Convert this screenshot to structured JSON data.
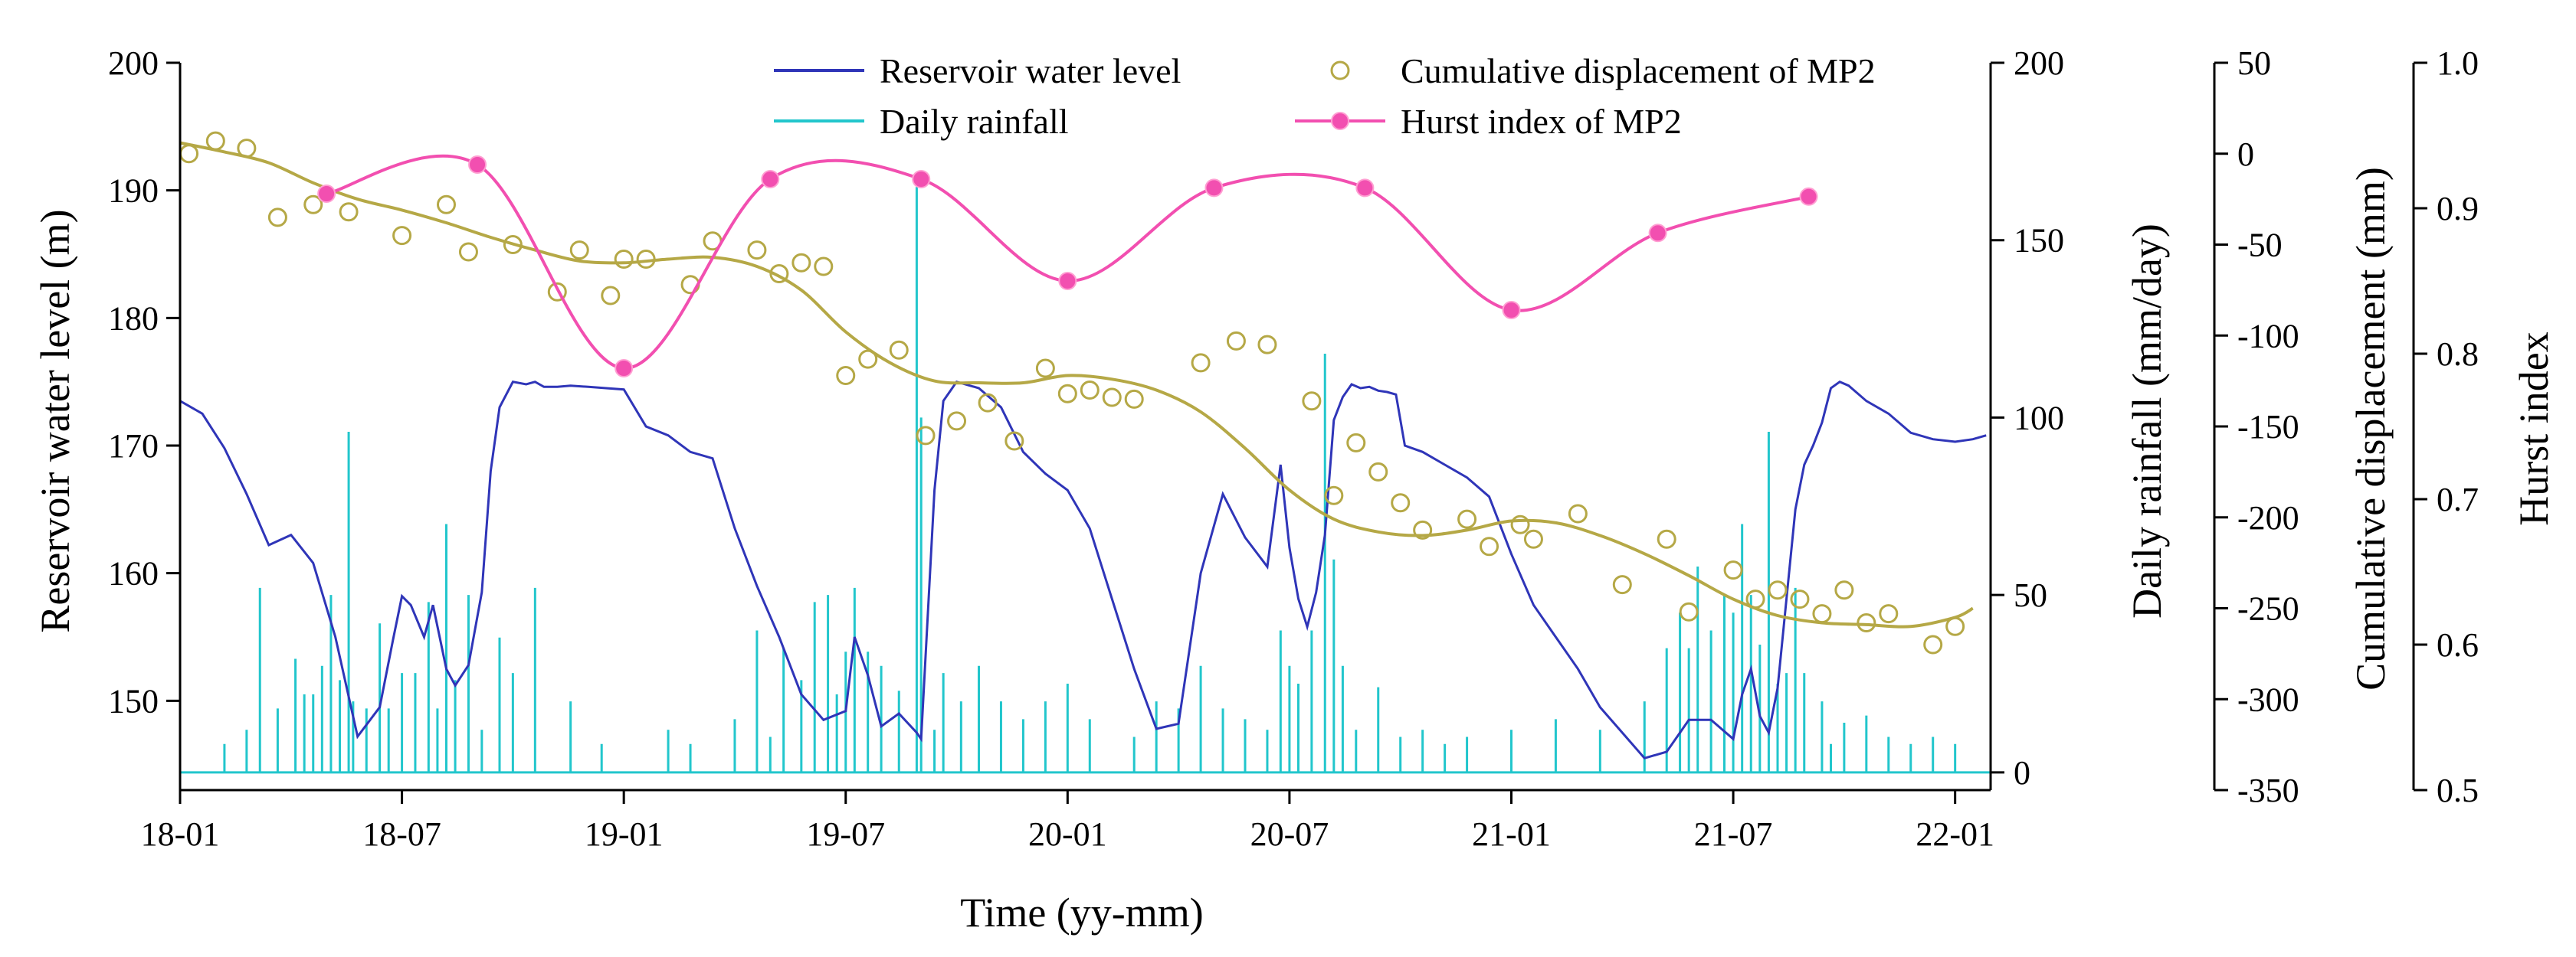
{
  "chart_data": {
    "type": "line",
    "xlabel": "Time (yy-mm)",
    "x_tick_labels": [
      "18-01",
      "18-07",
      "19-01",
      "19-07",
      "20-01",
      "20-07",
      "21-01",
      "21-07",
      "22-01"
    ],
    "x_tick_values": [
      2018.0,
      2018.5,
      2019.0,
      2019.5,
      2020.0,
      2020.5,
      2021.0,
      2021.5,
      2022.0
    ],
    "xlim": [
      2018.0,
      2022.08
    ],
    "axes": {
      "water": {
        "label": "Reservoir water level (m)",
        "lim": [
          143,
          200
        ],
        "ticks": [
          150,
          160,
          170,
          180,
          190,
          200
        ]
      },
      "rain": {
        "label": "Daily rainfall (mm/day)",
        "lim": [
          -5,
          200
        ],
        "ticks": [
          0,
          50,
          100,
          150,
          200
        ]
      },
      "disp": {
        "label": "Cumulative displacement (mm)",
        "lim": [
          -350,
          50
        ],
        "ticks": [
          -350,
          -300,
          -250,
          -200,
          -150,
          -100,
          -50,
          0,
          50
        ]
      },
      "hurst": {
        "label": "Hurst index",
        "lim": [
          0.5,
          1.0
        ],
        "ticks": [
          "0.5",
          "0.6",
          "0.7",
          "0.8",
          "0.9",
          "1.0"
        ]
      }
    },
    "legend": [
      {
        "label": "Reservoir water level",
        "color": "#2f35b8",
        "kind": "line"
      },
      {
        "label": "Cumulative displacement of MP2",
        "color": "#b5a846",
        "kind": "circle"
      },
      {
        "label": "Daily rainfall",
        "color": "#22c6cc",
        "kind": "line"
      },
      {
        "label": "Hurst index of MP2",
        "color": "#f24fb0",
        "kind": "line-dot"
      }
    ],
    "series": [
      {
        "name": "Reservoir water level",
        "axis": "water",
        "color": "#2f35b8",
        "x": [
          2018.0,
          2018.05,
          2018.1,
          2018.15,
          2018.2,
          2018.25,
          2018.3,
          2018.35,
          2018.4,
          2018.45,
          2018.48,
          2018.5,
          2018.52,
          2018.55,
          2018.57,
          2018.6,
          2018.62,
          2018.65,
          2018.68,
          2018.7,
          2018.72,
          2018.75,
          2018.78,
          2018.8,
          2018.82,
          2018.85,
          2018.88,
          2018.92,
          2018.96,
          2019.0,
          2019.05,
          2019.1,
          2019.15,
          2019.2,
          2019.25,
          2019.3,
          2019.35,
          2019.4,
          2019.45,
          2019.5,
          2019.52,
          2019.55,
          2019.58,
          2019.62,
          2019.66,
          2019.67,
          2019.7,
          2019.72,
          2019.75,
          2019.8,
          2019.85,
          2019.9,
          2019.95,
          2020.0,
          2020.05,
          2020.1,
          2020.15,
          2020.2,
          2020.25,
          2020.3,
          2020.35,
          2020.4,
          2020.45,
          2020.48,
          2020.5,
          2020.52,
          2020.54,
          2020.56,
          2020.58,
          2020.6,
          2020.62,
          2020.64,
          2020.66,
          2020.68,
          2020.7,
          2020.72,
          2020.74,
          2020.76,
          2020.8,
          2020.85,
          2020.9,
          2020.95,
          2021.0,
          2021.05,
          2021.1,
          2021.15,
          2021.2,
          2021.25,
          2021.3,
          2021.35,
          2021.4,
          2021.45,
          2021.5,
          2021.52,
          2021.54,
          2021.56,
          2021.58,
          2021.6,
          2021.62,
          2021.64,
          2021.66,
          2021.68,
          2021.7,
          2021.72,
          2021.74,
          2021.76,
          2021.8,
          2021.85,
          2021.9,
          2021.95,
          2022.0,
          2022.04,
          2022.07
        ],
        "values": [
          173.5,
          172.5,
          169.8,
          166.2,
          162.2,
          163.0,
          160.8,
          155.0,
          147.2,
          149.5,
          154.8,
          158.2,
          157.5,
          155.0,
          157.5,
          152.5,
          151.2,
          152.8,
          158.5,
          168.0,
          173.0,
          175.0,
          174.8,
          175.0,
          174.6,
          174.6,
          174.7,
          174.6,
          174.5,
          174.4,
          171.5,
          170.8,
          169.5,
          169.0,
          163.5,
          159.0,
          155.0,
          150.5,
          148.5,
          149.2,
          155.0,
          152.0,
          148.0,
          149.0,
          147.5,
          147.0,
          166.5,
          173.5,
          175.0,
          174.5,
          173.0,
          169.5,
          167.8,
          166.5,
          163.5,
          158.0,
          152.5,
          147.8,
          148.2,
          160.0,
          166.2,
          162.8,
          160.5,
          168.5,
          162.0,
          158.0,
          155.8,
          158.5,
          163.0,
          172.0,
          173.8,
          174.8,
          174.5,
          174.6,
          174.3,
          174.2,
          174.0,
          170.0,
          169.5,
          168.5,
          167.5,
          166.0,
          161.5,
          157.5,
          155.0,
          152.5,
          149.5,
          147.5,
          145.5,
          146.0,
          148.5,
          148.5,
          147.0,
          150.5,
          152.5,
          148.8,
          147.5,
          151.0,
          158.0,
          165.0,
          168.5,
          170.0,
          171.8,
          174.5,
          175.0,
          174.7,
          173.5,
          172.5,
          171.0,
          170.5,
          170.3,
          170.5,
          170.8
        ]
      },
      {
        "name": "Cumulative displacement of MP2 (fitted trend)",
        "axis": "disp",
        "color": "#b5a846",
        "x": [
          2018.0,
          2018.1,
          2018.2,
          2018.3,
          2018.4,
          2018.5,
          2018.6,
          2018.7,
          2018.8,
          2018.9,
          2019.0,
          2019.1,
          2019.2,
          2019.3,
          2019.4,
          2019.5,
          2019.6,
          2019.7,
          2019.8,
          2019.9,
          2020.0,
          2020.1,
          2020.2,
          2020.3,
          2020.4,
          2020.5,
          2020.6,
          2020.7,
          2020.8,
          2020.9,
          2021.0,
          2021.1,
          2021.2,
          2021.3,
          2021.4,
          2021.5,
          2021.6,
          2021.7,
          2021.8,
          2021.9,
          2022.0,
          2022.04
        ],
        "values": [
          6,
          1,
          -5,
          -16,
          -25,
          -31,
          -38,
          -46,
          -53,
          -59,
          -60,
          -58,
          -57,
          -62,
          -75,
          -98,
          -115,
          -125,
          -126,
          -126,
          -122,
          -124,
          -130,
          -142,
          -162,
          -185,
          -201,
          -208,
          -210,
          -207,
          -202,
          -203,
          -210,
          -220,
          -232,
          -245,
          -254,
          -258,
          -259,
          -260,
          -255,
          -250
        ]
      },
      {
        "name": "Cumulative displacement of MP2",
        "axis": "disp",
        "color": "#b5a846",
        "x": [
          2018.02,
          2018.08,
          2018.15,
          2018.22,
          2018.3,
          2018.38,
          2018.5,
          2018.6,
          2018.65,
          2018.75,
          2018.85,
          2018.9,
          2018.97,
          2019.05,
          2019.0,
          2019.15,
          2019.2,
          2019.3,
          2019.35,
          2019.4,
          2019.45,
          2019.5,
          2019.55,
          2019.62,
          2019.68,
          2019.75,
          2019.82,
          2019.88,
          2019.95,
          2020.0,
          2020.05,
          2020.1,
          2020.15,
          2020.3,
          2020.38,
          2020.45,
          2020.55,
          2020.6,
          2020.65,
          2020.7,
          2020.75,
          2020.8,
          2020.9,
          2020.95,
          2021.02,
          2021.05,
          2021.15,
          2021.25,
          2021.35,
          2021.4,
          2021.5,
          2021.55,
          2021.6,
          2021.65,
          2021.7,
          2021.75,
          2021.8,
          2021.85,
          2021.95,
          2022.0
        ],
        "values": [
          0,
          7,
          3,
          -35,
          -28,
          -32,
          -45,
          -28,
          -54,
          -50,
          -76,
          -53,
          -78,
          -58,
          -58,
          -72,
          -48,
          -53,
          -66,
          -60,
          -62,
          -122,
          -113,
          -108,
          -155,
          -147,
          -137,
          -158,
          -118,
          -132,
          -130,
          -134,
          -135,
          -115,
          -103,
          -105,
          -136,
          -188,
          -159,
          -175,
          -192,
          -207,
          -201,
          -216,
          -204,
          -212,
          -198,
          -237,
          -212,
          -252,
          -229,
          -245,
          -240,
          -245,
          -253,
          -240,
          -258,
          -253,
          -270,
          -260
        ]
      },
      {
        "name": "Hurst index of MP2",
        "axis": "hurst",
        "color": "#f24fb0",
        "x": [
          2018.33,
          2018.67,
          2019.0,
          2019.33,
          2019.67,
          2020.0,
          2020.33,
          2020.67,
          2021.0,
          2021.33,
          2021.67
        ],
        "values": [
          0.91,
          0.93,
          0.79,
          0.92,
          0.92,
          0.85,
          0.914,
          0.914,
          0.83,
          0.883,
          0.908
        ]
      }
    ],
    "rainfall": {
      "name": "Daily rainfall",
      "axis": "rain",
      "color": "#22c6cc",
      "x": [
        2018.1,
        2018.15,
        2018.18,
        2018.22,
        2018.26,
        2018.28,
        2018.3,
        2018.32,
        2018.34,
        2018.36,
        2018.38,
        2018.39,
        2018.42,
        2018.45,
        2018.47,
        2018.5,
        2018.53,
        2018.56,
        2018.58,
        2018.6,
        2018.62,
        2018.65,
        2018.68,
        2018.72,
        2018.75,
        2018.8,
        2018.88,
        2018.95,
        2019.1,
        2019.15,
        2019.25,
        2019.3,
        2019.33,
        2019.36,
        2019.4,
        2019.43,
        2019.46,
        2019.48,
        2019.5,
        2019.52,
        2019.55,
        2019.58,
        2019.62,
        2019.66,
        2019.67,
        2019.7,
        2019.72,
        2019.76,
        2019.8,
        2019.85,
        2019.9,
        2019.95,
        2020.0,
        2020.05,
        2020.15,
        2020.2,
        2020.25,
        2020.3,
        2020.35,
        2020.4,
        2020.45,
        2020.48,
        2020.5,
        2020.52,
        2020.55,
        2020.58,
        2020.6,
        2020.62,
        2020.65,
        2020.7,
        2020.75,
        2020.8,
        2020.85,
        2020.9,
        2021.0,
        2021.1,
        2021.2,
        2021.3,
        2021.35,
        2021.38,
        2021.4,
        2021.42,
        2021.45,
        2021.48,
        2021.5,
        2021.52,
        2021.54,
        2021.56,
        2021.58,
        2021.6,
        2021.62,
        2021.64,
        2021.66,
        2021.7,
        2021.72,
        2021.75,
        2021.8,
        2021.85,
        2021.9,
        2021.95,
        2022.0
      ],
      "values": [
        8,
        12,
        52,
        18,
        32,
        22,
        22,
        30,
        50,
        26,
        96,
        20,
        18,
        42,
        18,
        28,
        28,
        48,
        18,
        70,
        26,
        50,
        12,
        38,
        28,
        52,
        20,
        8,
        12,
        8,
        15,
        40,
        10,
        35,
        26,
        48,
        50,
        22,
        34,
        52,
        34,
        30,
        23,
        165,
        100,
        12,
        28,
        20,
        30,
        20,
        15,
        20,
        25,
        15,
        10,
        20,
        18,
        30,
        18,
        15,
        12,
        40,
        30,
        25,
        40,
        118,
        60,
        30,
        12,
        24,
        10,
        12,
        8,
        10,
        12,
        15,
        12,
        20,
        35,
        45,
        35,
        58,
        40,
        50,
        45,
        70,
        50,
        36,
        96,
        25,
        28,
        52,
        28,
        20,
        8,
        14,
        16,
        10,
        8,
        10,
        8
      ]
    }
  }
}
